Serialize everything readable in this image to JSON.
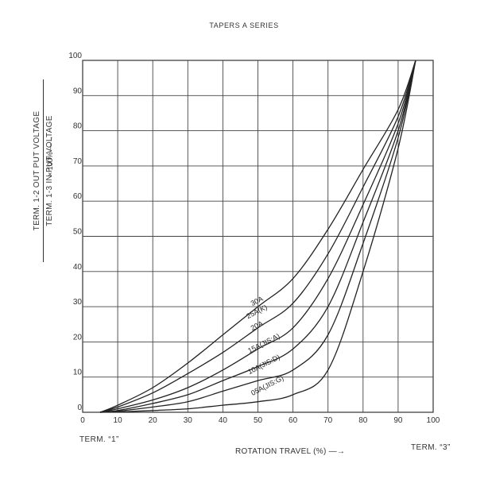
{
  "chart_data": {
    "type": "line",
    "title": "TAPERS A SERIES",
    "xlabel": "ROTATION TRAVEL (%) —→",
    "ylabel_numerator": "TERM. 1-2 OUT PUT VOLTAGE",
    "ylabel_denominator": "TERM. 1-3 IN PUT VOLTAGE",
    "ylabel_unit": "× 100% —→",
    "term_left": "TERM. “1”",
    "term_right": "TERM. “3”",
    "xlim": [
      0,
      100
    ],
    "ylim": [
      0,
      100
    ],
    "grid": true,
    "x_ticks": [
      0,
      10,
      20,
      30,
      40,
      50,
      60,
      70,
      80,
      90,
      100
    ],
    "y_ticks": [
      0,
      10,
      20,
      30,
      40,
      50,
      60,
      70,
      80,
      90,
      100
    ],
    "series": [
      {
        "name": "30A",
        "x": [
          5,
          10,
          20,
          30,
          40,
          50,
          60,
          70,
          80,
          90,
          95
        ],
        "y": [
          0,
          2,
          7,
          14,
          22,
          30,
          38,
          52,
          69,
          86,
          100
        ],
        "label_at": [
          50,
          31
        ]
      },
      {
        "name": "25A(K)",
        "x": [
          5,
          10,
          20,
          30,
          40,
          50,
          60,
          70,
          80,
          90,
          95
        ],
        "y": [
          0,
          1.5,
          5.5,
          11,
          17,
          24,
          31,
          45,
          64,
          84,
          100
        ],
        "label_at": [
          50,
          28
        ]
      },
      {
        "name": "20A",
        "x": [
          5,
          10,
          20,
          30,
          40,
          50,
          60,
          70,
          80,
          90,
          95
        ],
        "y": [
          0,
          1,
          3.5,
          7,
          12,
          18,
          24,
          38,
          59,
          82,
          100
        ],
        "label_at": [
          50,
          24
        ]
      },
      {
        "name": "15A(JIS:A)",
        "x": [
          5,
          10,
          20,
          30,
          40,
          50,
          60,
          70,
          80,
          90,
          95
        ],
        "y": [
          0,
          0.5,
          2.5,
          5,
          9,
          13,
          18,
          30,
          54,
          80,
          100
        ],
        "label_at": [
          52,
          19
        ]
      },
      {
        "name": "10A(JIS:D)",
        "x": [
          5,
          10,
          20,
          30,
          40,
          50,
          60,
          70,
          80,
          90,
          95
        ],
        "y": [
          0,
          0.3,
          1.5,
          3,
          6,
          9,
          12,
          22,
          48,
          78,
          100
        ],
        "label_at": [
          52,
          13
        ]
      },
      {
        "name": "05A(JIS:G)",
        "x": [
          5,
          10,
          20,
          30,
          40,
          50,
          60,
          70,
          80,
          90,
          95
        ],
        "y": [
          0,
          0.1,
          0.5,
          1,
          2,
          3,
          5,
          12,
          40,
          75,
          100
        ],
        "label_at": [
          53,
          7
        ]
      }
    ]
  }
}
